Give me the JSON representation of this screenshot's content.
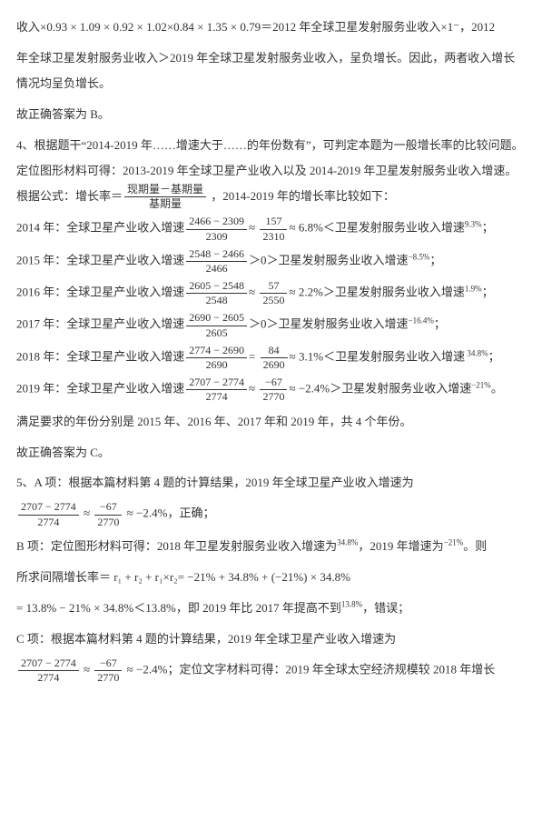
{
  "para1_a": "收入",
  "para1_math1": "×0.93 × 1.09 × 0.92 × 1.02×0.84 × 1.35 × 0.79＝",
  "para1_b": "2012 年全球卫星发射服务业收入",
  "para1_math2": "×1⁻",
  "para1_c": "，2012",
  "para2": "年全球卫星发射服务业收入＞2019 年全球卫星发射服务业收入，呈负增长。因此，两者收入增长情况均呈负增长。",
  "answerB": "故正确答案为 B。",
  "q4_intro": "4、根据题干“2014-2019 年……增速大于……的年份数有”，可判定本题为一般增长率的比较问题。定位图形材料可得：2013-2019 年全球卫星产业收入以及 2014-2019 年卫星发射服务业收入增速。根据公式：增长率＝",
  "q4_formula_num": "现期量－基期量",
  "q4_formula_den": "基期量",
  "q4_intro_end": " ，2014-2019 年的增长率比较如下：",
  "y2014_a": "2014 年：全球卫星产业收入增速",
  "y2014_f1n": "2466 − 2309",
  "y2014_f1d": "2309",
  "y2014_f2n": "157",
  "y2014_f2d": "2310",
  "y2014_b": "≈ 6.8%＜卫星发射服务业收入增速",
  "y2014_rate": "9.3%",
  "y2015_a": "2015 年：全球卫星产业收入增速",
  "y2015_f1n": "2548 − 2466",
  "y2015_f1d": "2466",
  "y2015_b": "＞0＞卫星发射服务业收入增速",
  "y2015_rate": "−8.5%",
  "y2016_a": "2016 年：全球卫星产业收入增速",
  "y2016_f1n": "2605 − 2548",
  "y2016_f1d": "2548",
  "y2016_f2n": "57",
  "y2016_f2d": "2550",
  "y2016_b": "≈ 2.2%＞卫星发射服务业收入增速",
  "y2016_rate": "1.9%",
  "y2017_a": "2017 年：全球卫星产业收入增速",
  "y2017_f1n": "2690 − 2605",
  "y2017_f1d": "2605",
  "y2017_b": "＞0＞卫星发射服务业收入增速",
  "y2017_rate": "−16.4%",
  "y2018_a": "2018 年：全球卫星产业收入增速",
  "y2018_f1n": "2774 − 2690",
  "y2018_f1d": "2690",
  "y2018_f2n": "84",
  "y2018_f2d": "2690",
  "y2018_b": "≈ 3.1%＜卫星发射服务业收入增速",
  "y2018_rate": " 34.8%",
  "y2019_a": "2019 年：全球卫星产业收入增速",
  "y2019_f1n": "2707 − 2774",
  "y2019_f1d": "2774",
  "y2019_f2n": "−67",
  "y2019_f2d": "2770",
  "y2019_b": "≈ −2.4%＞卫星发射服务业收入增速",
  "y2019_rate": "−21%",
  "summary4": "满足要求的年份分别是 2015 年、2016 年、2017 年和 2019 年，共 4 个年份。",
  "answerC": "故正确答案为 C。",
  "q5A_intro": "5、A 项：根据本篇材料第 4 题的计算结果，2019 年全球卫星产业收入增速为",
  "q5A_f1n": "2707 − 2774",
  "q5A_f1d": "2774",
  "q5A_f2n": "−67",
  "q5A_f2d": "2770",
  "q5A_end": "，正确；",
  "q5A_approx": "≈ −2.4%",
  "q5B_intro": "B 项：定位图形材料可得：2018 年卫星发射服务业收入增速为",
  "q5B_rate1": "34.8%",
  "q5B_mid": "，2019 年增速为",
  "q5B_rate2": "−21%",
  "q5B_end1": "。则",
  "q5B_line2a": "所求间隔增长率＝",
  "q5B_line2_math": " r₁ + r₂ + r₁×r₂= −21% + 34.8% + (−21%) × 34.8%",
  "q5B_line3": "= 13.8% − 21% × 34.8%＜13.8%",
  "q5B_line3b": "，即 2019 年比 2017 年提高不到",
  "q5B_rate3": "13.8%",
  "q5B_end2": "，错误；",
  "q5C_intro": "C 项：根据本篇材料第 4 题的计算结果，2019 年全球卫星产业收入增速为",
  "q5C_f1n": "2707 − 2774",
  "q5C_f1d": "2774",
  "q5C_f2n": "−67",
  "q5C_f2d": "2770",
  "q5C_approx": "≈ −2.4%",
  "q5C_end": "；定位文字材料可得：2019 年全球太空经济规模较 2018 年增长"
}
